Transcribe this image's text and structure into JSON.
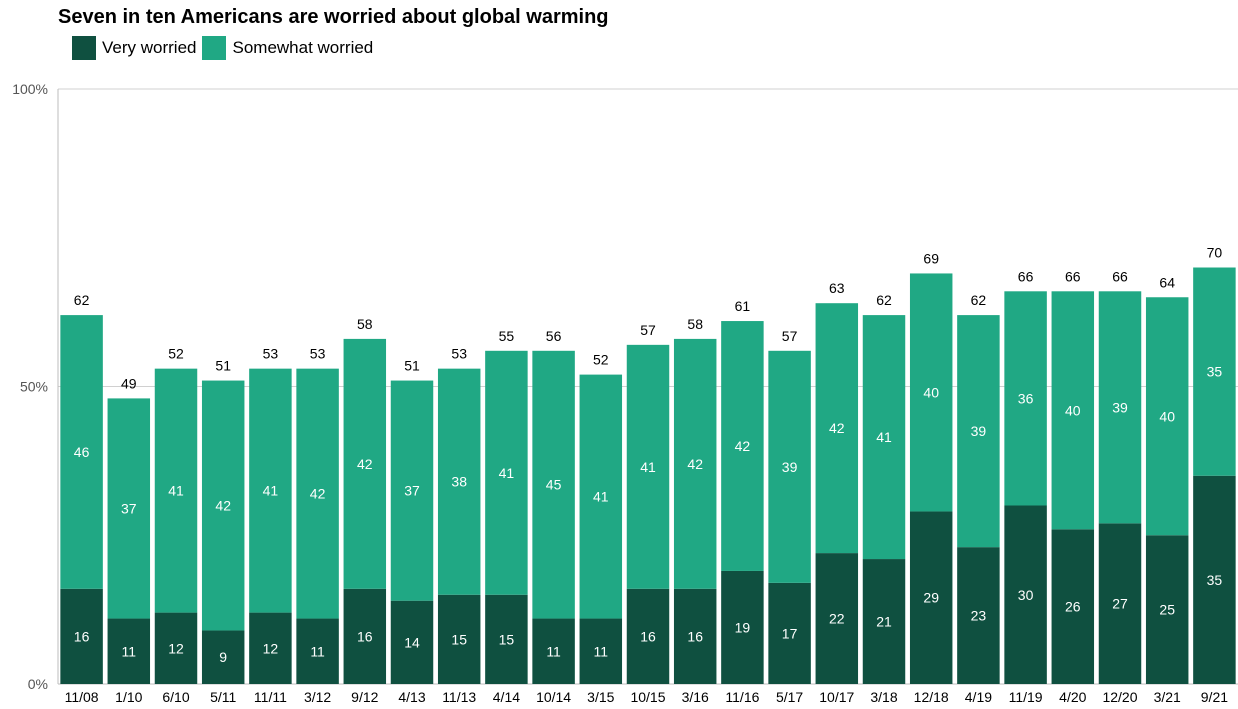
{
  "chart_data": {
    "type": "bar",
    "stacked": true,
    "title": "Seven in ten Americans are worried about global warming",
    "categories": [
      "11/08",
      "1/10",
      "6/10",
      "5/11",
      "11/11",
      "3/12",
      "9/12",
      "4/13",
      "11/13",
      "4/14",
      "10/14",
      "3/15",
      "10/15",
      "3/16",
      "11/16",
      "5/17",
      "10/17",
      "3/18",
      "12/18",
      "4/19",
      "11/19",
      "4/20",
      "12/20",
      "3/21",
      "9/21"
    ],
    "series": [
      {
        "name": "Very worried",
        "color": "#0f5040",
        "values": [
          16,
          11,
          12,
          9,
          12,
          11,
          16,
          14,
          15,
          15,
          11,
          11,
          16,
          16,
          19,
          17,
          22,
          21,
          29,
          23,
          30,
          26,
          27,
          25,
          35
        ]
      },
      {
        "name": "Somewhat worried",
        "color": "#20a884",
        "values": [
          46,
          37,
          41,
          42,
          41,
          42,
          42,
          37,
          38,
          41,
          45,
          41,
          41,
          42,
          42,
          39,
          42,
          41,
          40,
          39,
          36,
          40,
          39,
          40,
          35
        ]
      }
    ],
    "totals": [
      62,
      49,
      52,
      51,
      53,
      53,
      58,
      51,
      53,
      55,
      56,
      52,
      57,
      58,
      61,
      57,
      63,
      62,
      69,
      62,
      66,
      66,
      66,
      64,
      70
    ],
    "y_ticks": [
      "0%",
      "50%",
      "100%"
    ],
    "ylim": [
      0,
      100
    ],
    "grid": true,
    "legend_position": "top-left"
  }
}
